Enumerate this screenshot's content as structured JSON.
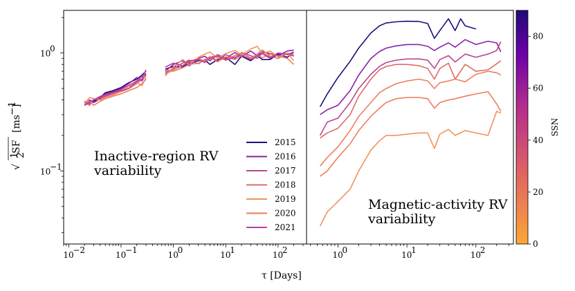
{
  "chart_data": {
    "type": "line",
    "x_label": "τ [Days]",
    "x_scale": "log",
    "y_scale": "log",
    "panels": [
      {
        "name": "inactive-region",
        "annotation_lines": [
          "Inactive-region RV",
          "variability"
        ],
        "xlim": [
          0.008,
          350
        ],
        "ylim": [
          0.024,
          2.3
        ],
        "x_ticks": [
          {
            "v": 0.01,
            "text": "10",
            "exp": "−2"
          },
          {
            "v": 0.1,
            "text": "10",
            "exp": "−1"
          },
          {
            "v": 1,
            "text": "10",
            "exp": "0"
          },
          {
            "v": 10,
            "text": "10",
            "exp": "1"
          },
          {
            "v": 100,
            "text": "10",
            "exp": "2"
          }
        ],
        "y_ticks": [
          {
            "v": 0.1,
            "text": "10",
            "exp": "−1"
          },
          {
            "v": 1,
            "text": "10",
            "exp": "0"
          }
        ],
        "series": [
          {
            "name": "2015",
            "color": "#1a0f7a",
            "short": {
              "x": [
                0.02,
                0.025,
                0.03,
                0.04,
                0.05,
                0.07,
                0.1,
                0.14,
                0.2,
                0.25,
                0.3
              ],
              "y": [
                0.37,
                0.38,
                0.39,
                0.42,
                0.46,
                0.48,
                0.51,
                0.56,
                0.6,
                0.65,
                0.7
              ]
            },
            "long": {
              "x": [
                0.7,
                1,
                1.5,
                2,
                3,
                4,
                5,
                7,
                10,
                15,
                20,
                30,
                40,
                50,
                70,
                100,
                150,
                200
              ],
              "y": [
                0.73,
                0.77,
                0.76,
                0.82,
                0.86,
                0.87,
                0.8,
                0.88,
                0.92,
                0.8,
                0.94,
                0.86,
                0.95,
                0.88,
                0.88,
                0.98,
                0.92,
                1.02
              ]
            }
          },
          {
            "name": "2016",
            "color": "#8b1fa6",
            "short": {
              "x": [
                0.02,
                0.025,
                0.03,
                0.04,
                0.05,
                0.07,
                0.1,
                0.14,
                0.2,
                0.25,
                0.3
              ],
              "y": [
                0.36,
                0.4,
                0.38,
                0.41,
                0.45,
                0.47,
                0.5,
                0.55,
                0.62,
                0.58,
                0.66
              ]
            },
            "long": {
              "x": [
                0.7,
                1,
                1.5,
                2,
                3,
                4,
                5,
                7,
                10,
                15,
                20,
                30,
                40,
                50,
                70,
                100,
                150,
                200
              ],
              "y": [
                0.7,
                0.8,
                0.86,
                0.78,
                0.9,
                0.94,
                0.86,
                0.97,
                0.9,
                1.01,
                0.93,
                1.04,
                0.95,
                1.02,
                0.99,
                0.95,
                1.04,
                1.06
              ]
            }
          },
          {
            "name": "2017",
            "color": "#b8468f",
            "short": {
              "x": [
                0.02,
                0.025,
                0.03,
                0.04,
                0.05,
                0.07,
                0.1,
                0.14,
                0.2,
                0.25,
                0.3
              ],
              "y": [
                0.39,
                0.37,
                0.4,
                0.43,
                0.44,
                0.46,
                0.49,
                0.53,
                0.58,
                0.63,
                0.67
              ]
            },
            "long": {
              "x": [
                0.7,
                1,
                1.5,
                2,
                3,
                4,
                5,
                7,
                10,
                15,
                20,
                30,
                40,
                50,
                70,
                100,
                150,
                200
              ],
              "y": [
                0.68,
                0.74,
                0.82,
                0.87,
                0.81,
                0.88,
                0.93,
                0.86,
                0.97,
                0.9,
                1.01,
                0.95,
                0.9,
                1.0,
                0.92,
                1.0,
                0.98,
                0.94
              ]
            }
          },
          {
            "name": "2018",
            "color": "#de6a66",
            "short": {
              "x": [
                0.02,
                0.025,
                0.03,
                0.04,
                0.05,
                0.07,
                0.1,
                0.14,
                0.2,
                0.25,
                0.3
              ],
              "y": [
                0.38,
                0.36,
                0.41,
                0.4,
                0.43,
                0.45,
                0.47,
                0.5,
                0.55,
                0.6,
                0.64
              ]
            },
            "long": {
              "x": [
                0.7,
                1,
                1.5,
                2,
                3,
                4,
                5,
                7,
                10,
                15,
                20,
                30,
                40,
                50,
                70,
                100,
                150,
                200
              ],
              "y": [
                0.66,
                0.72,
                0.78,
                0.84,
                0.9,
                0.84,
                0.92,
                0.96,
                0.88,
                0.95,
                1.0,
                0.91,
                0.98,
                1.06,
                0.94,
                0.9,
                1.0,
                0.96
              ]
            }
          },
          {
            "name": "2019",
            "color": "#f2925a",
            "short": {
              "x": [
                0.02,
                0.025,
                0.03,
                0.04,
                0.05,
                0.07,
                0.1,
                0.14,
                0.2,
                0.25,
                0.3
              ],
              "y": [
                0.37,
                0.42,
                0.41,
                0.4,
                0.42,
                0.44,
                0.47,
                0.52,
                0.56,
                0.53,
                0.62
              ]
            },
            "long": {
              "x": [
                0.7,
                1,
                1.5,
                2,
                3,
                4,
                5,
                7,
                10,
                15,
                20,
                30,
                40,
                50,
                70,
                100,
                150,
                200
              ],
              "y": [
                0.64,
                0.76,
                0.88,
                0.8,
                0.92,
                0.98,
                1.02,
                0.9,
                0.99,
                1.05,
                0.97,
                1.08,
                1.14,
                0.98,
                1.04,
                0.93,
                1.0,
                0.86
              ]
            }
          },
          {
            "name": "2020",
            "color": "#ec7c5a",
            "short": {
              "x": [
                0.02,
                0.025,
                0.03,
                0.04,
                0.05,
                0.07,
                0.1,
                0.14,
                0.2,
                0.25,
                0.3
              ],
              "y": [
                0.38,
                0.39,
                0.36,
                0.39,
                0.41,
                0.43,
                0.45,
                0.48,
                0.51,
                0.55,
                0.6
              ]
            },
            "long": {
              "x": [
                0.7,
                1,
                1.5,
                2,
                3,
                4,
                5,
                7,
                10,
                15,
                20,
                30,
                40,
                50,
                70,
                100,
                150,
                200
              ],
              "y": [
                0.72,
                0.7,
                0.75,
                0.8,
                0.82,
                0.87,
                0.92,
                0.84,
                0.93,
                0.88,
                0.95,
                0.9,
                0.97,
                0.91,
                0.98,
                0.94,
                0.9,
                0.8
              ]
            }
          },
          {
            "name": "2021",
            "color": "#c03ba8",
            "short": {
              "x": [
                0.02,
                0.025,
                0.03,
                0.04,
                0.05,
                0.07,
                0.1,
                0.14,
                0.2,
                0.25,
                0.3
              ],
              "y": [
                0.36,
                0.38,
                0.4,
                0.42,
                0.43,
                0.46,
                0.48,
                0.5,
                0.57,
                0.6,
                0.72
              ]
            },
            "long": {
              "x": [
                0.7,
                1,
                1.5,
                2,
                3,
                4,
                5,
                7,
                10,
                15,
                20,
                30,
                40,
                50,
                70,
                100,
                150,
                200
              ],
              "y": [
                0.76,
                0.82,
                0.78,
                0.86,
                0.88,
                0.83,
                0.9,
                0.94,
                0.87,
                0.92,
                0.96,
                0.88,
                0.94,
                0.99,
                0.9,
                1.0,
                0.97,
                1.02
              ]
            }
          }
        ]
      },
      {
        "name": "magnetic-activity",
        "annotation_lines": [
          "Magnetic-activity RV",
          "variability"
        ],
        "xlim": [
          0.35,
          350
        ],
        "ylim": [
          0.024,
          2.3
        ],
        "x_ticks": [
          {
            "v": 1,
            "text": "10",
            "exp": "0"
          },
          {
            "v": 10,
            "text": "10",
            "exp": "1"
          },
          {
            "v": 100,
            "text": "10",
            "exp": "2"
          }
        ],
        "series": [
          {
            "name": "2015",
            "ssn": 90,
            "color": "#1a0f7a",
            "x": [
              0.55,
              0.7,
              1,
              1.5,
              2,
              3,
              4,
              5,
              7,
              10,
              15,
              20,
              25,
              30,
              40,
              50,
              60,
              70,
              100
            ],
            "y": [
              0.35,
              0.45,
              0.62,
              0.85,
              1.1,
              1.48,
              1.7,
              1.8,
              1.84,
              1.86,
              1.85,
              1.78,
              1.33,
              1.55,
              1.95,
              1.55,
              1.95,
              1.7,
              1.6
            ]
          },
          {
            "name": "2016",
            "ssn": 70,
            "color": "#8b1fa6",
            "x": [
              0.55,
              0.7,
              1,
              1.5,
              2,
              3,
              4,
              5,
              7,
              10,
              15,
              20,
              25,
              30,
              40,
              50,
              70,
              100,
              150,
              200,
              230
            ],
            "y": [
              0.3,
              0.33,
              0.36,
              0.48,
              0.65,
              0.9,
              1.03,
              1.1,
              1.15,
              1.18,
              1.18,
              1.14,
              1.05,
              1.12,
              1.22,
              1.12,
              1.3,
              1.18,
              1.26,
              1.22,
              1.02
            ]
          },
          {
            "name": "2017",
            "ssn": 55,
            "color": "#b8468f",
            "x": [
              0.55,
              0.7,
              1,
              1.5,
              2,
              3,
              4,
              5,
              7,
              10,
              15,
              20,
              25,
              30,
              40,
              50,
              70,
              100,
              150,
              200,
              230
            ],
            "y": [
              0.2,
              0.26,
              0.28,
              0.38,
              0.5,
              0.66,
              0.77,
              0.83,
              0.87,
              0.89,
              0.89,
              0.87,
              0.74,
              0.88,
              0.95,
              0.84,
              0.98,
              0.92,
              0.98,
              1.05,
              1.25
            ]
          },
          {
            "name": "2018",
            "ssn": 48,
            "color": "#de6a66",
            "x": [
              0.55,
              0.7,
              1,
              1.5,
              2,
              3,
              4,
              5,
              7,
              10,
              15,
              20,
              25,
              30,
              40,
              50,
              70,
              100,
              150,
              200,
              230
            ],
            "y": [
              0.19,
              0.21,
              0.23,
              0.3,
              0.43,
              0.6,
              0.72,
              0.77,
              0.8,
              0.8,
              0.78,
              0.74,
              0.6,
              0.74,
              0.82,
              0.6,
              0.8,
              0.7,
              0.72,
              0.81,
              0.86
            ]
          },
          {
            "name": "2019",
            "ssn": 8,
            "color": "#f2925a",
            "x": [
              0.55,
              0.7,
              1,
              1.5,
              2,
              3,
              4,
              5,
              7,
              10,
              15,
              20,
              25,
              30,
              40,
              50,
              70,
              100,
              150,
              200,
              230
            ],
            "y": [
              0.034,
              0.045,
              0.055,
              0.07,
              0.1,
              0.15,
              0.18,
              0.2,
              0.2,
              0.205,
              0.21,
              0.21,
              0.155,
              0.205,
              0.225,
              0.2,
              0.22,
              0.21,
              0.2,
              0.32,
              0.31
            ]
          },
          {
            "name": "2020",
            "ssn": 10,
            "color": "#ec7c5a",
            "x": [
              0.55,
              0.7,
              1,
              1.5,
              2,
              3,
              4,
              5,
              7,
              10,
              15,
              20,
              25,
              30,
              40,
              50,
              70,
              100,
              150,
              200,
              230
            ],
            "y": [
              0.09,
              0.1,
              0.13,
              0.17,
              0.22,
              0.29,
              0.34,
              0.38,
              0.41,
              0.42,
              0.42,
              0.41,
              0.34,
              0.38,
              0.4,
              0.41,
              0.43,
              0.45,
              0.47,
              0.37,
              0.32
            ]
          },
          {
            "name": "2021",
            "ssn": 22,
            "color": "#f07e5c",
            "x": [
              0.55,
              0.7,
              1,
              1.5,
              2,
              3,
              4,
              5,
              7,
              10,
              15,
              20,
              25,
              30,
              40,
              50,
              70,
              100,
              150,
              200,
              230
            ],
            "y": [
              0.11,
              0.13,
              0.16,
              0.22,
              0.29,
              0.38,
              0.46,
              0.5,
              0.55,
              0.58,
              0.6,
              0.58,
              0.5,
              0.56,
              0.58,
              0.6,
              0.57,
              0.66,
              0.7,
              0.68,
              0.65
            ]
          }
        ]
      }
    ],
    "y_label": {
      "root": "√",
      "frac_num": "1",
      "frac_den": "2",
      "sf": "SF",
      "units": "[ms",
      "units_exp": "−1",
      "units_close": "]"
    },
    "legend": {
      "placement": "lower-right of left panel",
      "entries": [
        "2015",
        "2016",
        "2017",
        "2018",
        "2019",
        "2020",
        "2021"
      ]
    },
    "colorbar": {
      "label": "SSN",
      "min": 0,
      "max": 90,
      "ticks": [
        0,
        20,
        40,
        60,
        80
      ],
      "colors": [
        "#fca636",
        "#e16462",
        "#b12a90",
        "#6a00a8",
        "#1f0c77"
      ]
    }
  }
}
